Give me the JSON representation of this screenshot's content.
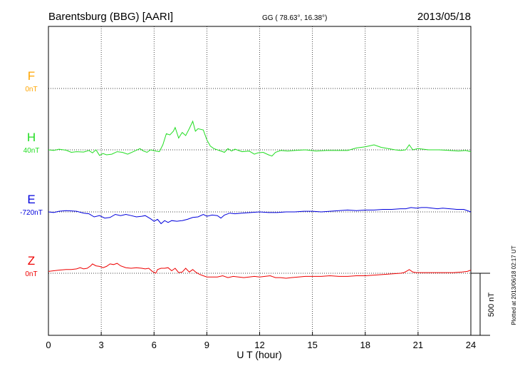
{
  "header": {
    "station": "Barentsburg (BBG)  [AARI]",
    "coords": "GG ( 78.63°,  16.38°)",
    "date": "2013/05/18"
  },
  "footer": {
    "plotted": "Plotted at 2013/06/18 02:17 UT"
  },
  "scale_bar": {
    "label": "500 nT"
  },
  "colors": {
    "F": "#ffa500",
    "H": "#22dd22",
    "E": "#0000dd",
    "Z": "#ee0000",
    "grid": "#000000"
  },
  "chart_data": {
    "type": "line",
    "xlabel": "U T (hour)",
    "xlim": [
      0,
      24
    ],
    "xticks": [
      "0",
      "3",
      "6",
      "9",
      "12",
      "15",
      "18",
      "21",
      "24"
    ],
    "grid": true,
    "series": [
      {
        "name": "F",
        "baseline": "0nT",
        "color": "#ffa500",
        "points": []
      },
      {
        "name": "H",
        "baseline": "40nT",
        "color": "#22dd22",
        "points": [
          [
            0,
            0
          ],
          [
            0.3,
            -5
          ],
          [
            0.6,
            5
          ],
          [
            1,
            -3
          ],
          [
            1.3,
            -20
          ],
          [
            1.6,
            -15
          ],
          [
            2,
            -18
          ],
          [
            2.3,
            -5
          ],
          [
            2.5,
            -25
          ],
          [
            2.7,
            0
          ],
          [
            2.9,
            -45
          ],
          [
            3.1,
            -30
          ],
          [
            3.3,
            -40
          ],
          [
            3.6,
            -35
          ],
          [
            3.9,
            -15
          ],
          [
            4.2,
            -20
          ],
          [
            4.5,
            -35
          ],
          [
            4.9,
            -10
          ],
          [
            5.2,
            10
          ],
          [
            5.4,
            -10
          ],
          [
            5.6,
            -20
          ],
          [
            5.8,
            0
          ],
          [
            6.1,
            -10
          ],
          [
            6.3,
            -15
          ],
          [
            6.5,
            40
          ],
          [
            6.7,
            130
          ],
          [
            6.9,
            120
          ],
          [
            7.1,
            150
          ],
          [
            7.2,
            180
          ],
          [
            7.4,
            95
          ],
          [
            7.6,
            140
          ],
          [
            7.8,
            115
          ],
          [
            8.0,
            170
          ],
          [
            8.2,
            230
          ],
          [
            8.35,
            150
          ],
          [
            8.5,
            170
          ],
          [
            8.8,
            160
          ],
          [
            9.0,
            80
          ],
          [
            9.2,
            30
          ],
          [
            9.4,
            10
          ],
          [
            9.7,
            -5
          ],
          [
            10.0,
            -20
          ],
          [
            10.2,
            10
          ],
          [
            10.4,
            -10
          ],
          [
            10.6,
            5
          ],
          [
            11.0,
            -15
          ],
          [
            11.4,
            -10
          ],
          [
            11.7,
            -35
          ],
          [
            11.9,
            -25
          ],
          [
            12.2,
            -20
          ],
          [
            12.5,
            -40
          ],
          [
            12.7,
            -50
          ],
          [
            12.9,
            -20
          ],
          [
            13.2,
            -5
          ],
          [
            13.6,
            -10
          ],
          [
            14.0,
            -5
          ],
          [
            14.6,
            0
          ],
          [
            15.2,
            -10
          ],
          [
            15.8,
            -5
          ],
          [
            16.4,
            -5
          ],
          [
            17.0,
            -5
          ],
          [
            17.5,
            15
          ],
          [
            18.0,
            25
          ],
          [
            18.5,
            40
          ],
          [
            18.9,
            20
          ],
          [
            19.3,
            10
          ],
          [
            19.7,
            0
          ],
          [
            20.0,
            -5
          ],
          [
            20.3,
            0
          ],
          [
            20.5,
            40
          ],
          [
            20.7,
            0
          ],
          [
            21.0,
            10
          ],
          [
            21.6,
            0
          ],
          [
            22.2,
            0
          ],
          [
            22.8,
            -5
          ],
          [
            23.3,
            -10
          ],
          [
            23.7,
            -5
          ],
          [
            24.0,
            -15
          ]
        ]
      },
      {
        "name": "E",
        "baseline": "-720nT",
        "color": "#0000dd",
        "points": [
          [
            0,
            0
          ],
          [
            0.3,
            -5
          ],
          [
            0.6,
            5
          ],
          [
            1.0,
            10
          ],
          [
            1.3,
            8
          ],
          [
            1.6,
            5
          ],
          [
            2.0,
            -10
          ],
          [
            2.3,
            -15
          ],
          [
            2.6,
            -40
          ],
          [
            2.9,
            -30
          ],
          [
            3.2,
            -50
          ],
          [
            3.5,
            -45
          ],
          [
            3.8,
            -20
          ],
          [
            4.1,
            -30
          ],
          [
            4.4,
            -20
          ],
          [
            4.7,
            -30
          ],
          [
            5.0,
            -40
          ],
          [
            5.3,
            -35
          ],
          [
            5.5,
            -30
          ],
          [
            5.8,
            -55
          ],
          [
            6.0,
            -75
          ],
          [
            6.2,
            -60
          ],
          [
            6.4,
            -95
          ],
          [
            6.6,
            -70
          ],
          [
            6.8,
            -85
          ],
          [
            7.0,
            -70
          ],
          [
            7.3,
            -75
          ],
          [
            7.6,
            -70
          ],
          [
            7.9,
            -60
          ],
          [
            8.2,
            -45
          ],
          [
            8.5,
            -40
          ],
          [
            8.8,
            -20
          ],
          [
            9.0,
            -35
          ],
          [
            9.3,
            -25
          ],
          [
            9.6,
            -30
          ],
          [
            9.8,
            -50
          ],
          [
            10.0,
            -25
          ],
          [
            10.3,
            -10
          ],
          [
            10.6,
            -15
          ],
          [
            11.0,
            -10
          ],
          [
            11.5,
            -5
          ],
          [
            12.0,
            0
          ],
          [
            12.5,
            -5
          ],
          [
            13.0,
            -5
          ],
          [
            13.5,
            0
          ],
          [
            14.0,
            0
          ],
          [
            14.5,
            5
          ],
          [
            15.0,
            5
          ],
          [
            15.5,
            0
          ],
          [
            16.0,
            5
          ],
          [
            16.5,
            10
          ],
          [
            17.0,
            15
          ],
          [
            17.5,
            10
          ],
          [
            18.0,
            15
          ],
          [
            18.5,
            15
          ],
          [
            19.0,
            20
          ],
          [
            19.5,
            20
          ],
          [
            20.0,
            25
          ],
          [
            20.3,
            25
          ],
          [
            20.6,
            35
          ],
          [
            20.9,
            30
          ],
          [
            21.2,
            35
          ],
          [
            21.5,
            35
          ],
          [
            21.8,
            30
          ],
          [
            22.1,
            25
          ],
          [
            22.4,
            30
          ],
          [
            22.8,
            25
          ],
          [
            23.2,
            20
          ],
          [
            23.6,
            20
          ],
          [
            24.0,
            0
          ]
        ]
      },
      {
        "name": "Z",
        "baseline": "0nT",
        "color": "#ee0000",
        "points": [
          [
            0,
            15
          ],
          [
            0.3,
            20
          ],
          [
            0.6,
            25
          ],
          [
            1.0,
            30
          ],
          [
            1.3,
            30
          ],
          [
            1.6,
            35
          ],
          [
            1.8,
            45
          ],
          [
            2.0,
            35
          ],
          [
            2.2,
            40
          ],
          [
            2.4,
            60
          ],
          [
            2.5,
            75
          ],
          [
            2.7,
            60
          ],
          [
            2.9,
            55
          ],
          [
            3.1,
            45
          ],
          [
            3.3,
            55
          ],
          [
            3.5,
            75
          ],
          [
            3.7,
            70
          ],
          [
            3.9,
            80
          ],
          [
            4.1,
            60
          ],
          [
            4.4,
            45
          ],
          [
            4.7,
            40
          ],
          [
            5.0,
            45
          ],
          [
            5.3,
            40
          ],
          [
            5.5,
            35
          ],
          [
            5.7,
            40
          ],
          [
            5.9,
            15
          ],
          [
            6.1,
            0
          ],
          [
            6.2,
            30
          ],
          [
            6.4,
            40
          ],
          [
            6.6,
            40
          ],
          [
            6.8,
            45
          ],
          [
            7.0,
            20
          ],
          [
            7.2,
            40
          ],
          [
            7.4,
            5
          ],
          [
            7.6,
            10
          ],
          [
            7.8,
            40
          ],
          [
            8.0,
            10
          ],
          [
            8.2,
            30
          ],
          [
            8.4,
            5
          ],
          [
            8.6,
            -10
          ],
          [
            8.8,
            -20
          ],
          [
            9.0,
            -30
          ],
          [
            9.3,
            -30
          ],
          [
            9.6,
            -30
          ],
          [
            9.9,
            -20
          ],
          [
            10.2,
            -35
          ],
          [
            10.5,
            -25
          ],
          [
            10.8,
            -30
          ],
          [
            11.1,
            -35
          ],
          [
            11.4,
            -30
          ],
          [
            11.7,
            -25
          ],
          [
            12.0,
            -30
          ],
          [
            12.3,
            -25
          ],
          [
            12.6,
            -20
          ],
          [
            12.9,
            -35
          ],
          [
            13.2,
            -35
          ],
          [
            13.5,
            -40
          ],
          [
            13.8,
            -35
          ],
          [
            14.2,
            -30
          ],
          [
            14.6,
            -25
          ],
          [
            15.0,
            -25
          ],
          [
            15.5,
            -25
          ],
          [
            16.0,
            -20
          ],
          [
            16.5,
            -25
          ],
          [
            17.0,
            -25
          ],
          [
            17.5,
            -20
          ],
          [
            18.0,
            -20
          ],
          [
            18.5,
            -15
          ],
          [
            19.0,
            -10
          ],
          [
            19.5,
            -5
          ],
          [
            20.0,
            0
          ],
          [
            20.2,
            5
          ],
          [
            20.4,
            20
          ],
          [
            20.5,
            30
          ],
          [
            20.7,
            10
          ],
          [
            20.9,
            5
          ],
          [
            21.2,
            5
          ],
          [
            21.6,
            5
          ],
          [
            22.0,
            5
          ],
          [
            22.5,
            5
          ],
          [
            23.0,
            5
          ],
          [
            23.5,
            10
          ],
          [
            23.8,
            15
          ],
          [
            24.0,
            25
          ]
        ]
      }
    ]
  }
}
